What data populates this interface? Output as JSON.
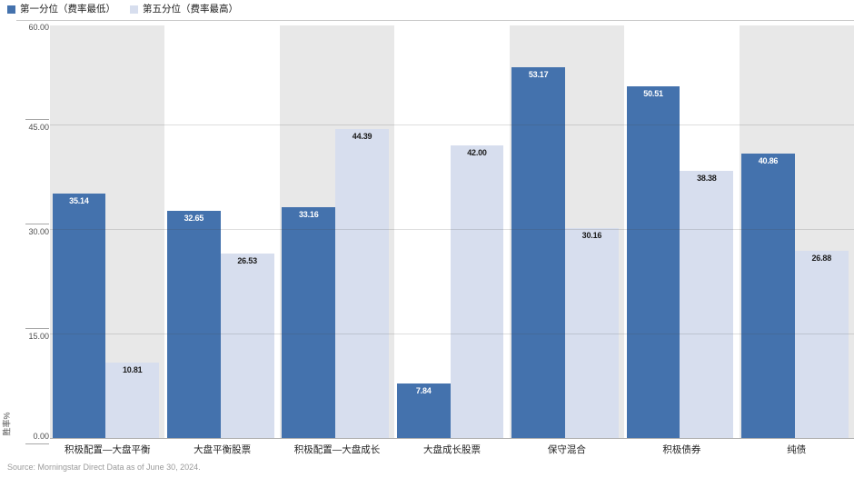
{
  "legend": {
    "items": [
      {
        "label": "第一分位（费率最低）",
        "color": "#4472ad"
      },
      {
        "label": "第五分位（费率最高）",
        "color": "#d7deee"
      }
    ]
  },
  "chart_data": {
    "type": "bar",
    "title": "",
    "categories": [
      "积极配置—大盘平衡",
      "大盘平衡股票",
      "积极配置—大盘成长",
      "大盘成长股票",
      "保守混合",
      "积极债券",
      "纯债"
    ],
    "series": [
      {
        "name": "第一分位（费率最低）",
        "color": "#4472ad",
        "label_color": "#ffffff",
        "values": [
          35.14,
          32.65,
          33.16,
          7.84,
          53.17,
          50.51,
          40.86
        ]
      },
      {
        "name": "第五分位（费率最高）",
        "color": "#d7deee",
        "label_color": "#1a1a1a",
        "values": [
          10.81,
          26.53,
          44.39,
          42.0,
          30.16,
          38.38,
          26.88
        ]
      }
    ],
    "xlabel": "",
    "ylabel": "胜率%",
    "ylim": [
      0,
      60
    ],
    "yticks": [
      0,
      15,
      30,
      45,
      60
    ],
    "ytick_labels": [
      "0.00",
      "15.00",
      "30.00",
      "45.00",
      "60.00"
    ],
    "grid": true,
    "legend_position": "top-left",
    "band_color": "#e8e8e8",
    "value_label_decimals": 2
  },
  "source": "Source: Morningstar Direct  Data as of June 30, 2024."
}
